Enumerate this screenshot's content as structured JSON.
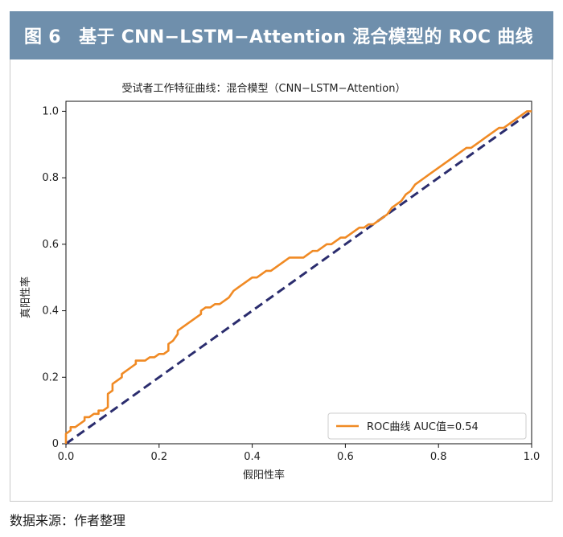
{
  "banner": {
    "title": "图 6　基于 CNN−LSTM−Attention 混合模型的 ROC 曲线"
  },
  "source": {
    "text": "数据来源：作者整理"
  },
  "colors": {
    "banner_bg": "#6f8fac",
    "roc_curve": "#f08a24",
    "diagonal": "#2b2d6e"
  },
  "chart_data": {
    "type": "line",
    "title": "受试者工作特征曲线：混合模型（CNN−LSTM−Attention）",
    "xlabel": "假阳性率",
    "ylabel": "真阳性率",
    "xlim": [
      0,
      1
    ],
    "ylim": [
      0,
      1.03
    ],
    "xticks": [
      "0.0",
      "0.2",
      "0.4",
      "0.6",
      "0.8",
      "1.0"
    ],
    "yticks": [
      "0",
      "0.2",
      "0.4",
      "0.6",
      "0.8",
      "1.0"
    ],
    "grid": false,
    "legend_position": "bottom-right",
    "series": [
      {
        "name": "ROC曲线 AUC值=0.54",
        "style": "solid",
        "x": [
          0,
          0,
          0.01,
          0.01,
          0.02,
          0.03,
          0.04,
          0.04,
          0.05,
          0.06,
          0.07,
          0.07,
          0.08,
          0.09,
          0.09,
          0.1,
          0.1,
          0.11,
          0.12,
          0.12,
          0.13,
          0.14,
          0.15,
          0.15,
          0.16,
          0.17,
          0.18,
          0.19,
          0.2,
          0.21,
          0.22,
          0.22,
          0.23,
          0.24,
          0.24,
          0.25,
          0.26,
          0.27,
          0.28,
          0.29,
          0.29,
          0.3,
          0.31,
          0.32,
          0.33,
          0.34,
          0.35,
          0.36,
          0.37,
          0.38,
          0.39,
          0.4,
          0.41,
          0.42,
          0.43,
          0.44,
          0.45,
          0.46,
          0.47,
          0.48,
          0.49,
          0.5,
          0.51,
          0.52,
          0.53,
          0.54,
          0.55,
          0.56,
          0.57,
          0.58,
          0.59,
          0.6,
          0.61,
          0.62,
          0.63,
          0.64,
          0.65,
          0.66,
          0.67,
          0.68,
          0.69,
          0.7,
          0.71,
          0.72,
          0.73,
          0.74,
          0.75,
          0.76,
          0.77,
          0.78,
          0.79,
          0.8,
          0.81,
          0.82,
          0.83,
          0.84,
          0.85,
          0.86,
          0.87,
          0.88,
          0.89,
          0.9,
          0.91,
          0.92,
          0.93,
          0.94,
          0.95,
          0.96,
          0.97,
          0.98,
          0.99,
          1.0
        ],
        "y": [
          0,
          0.03,
          0.04,
          0.05,
          0.05,
          0.06,
          0.07,
          0.08,
          0.08,
          0.09,
          0.09,
          0.1,
          0.1,
          0.11,
          0.15,
          0.16,
          0.18,
          0.19,
          0.2,
          0.21,
          0.22,
          0.23,
          0.24,
          0.25,
          0.25,
          0.25,
          0.26,
          0.26,
          0.27,
          0.27,
          0.28,
          0.3,
          0.31,
          0.33,
          0.34,
          0.35,
          0.36,
          0.37,
          0.38,
          0.39,
          0.4,
          0.41,
          0.41,
          0.42,
          0.42,
          0.43,
          0.44,
          0.46,
          0.47,
          0.48,
          0.49,
          0.5,
          0.5,
          0.51,
          0.52,
          0.52,
          0.53,
          0.54,
          0.55,
          0.56,
          0.56,
          0.56,
          0.56,
          0.57,
          0.58,
          0.58,
          0.59,
          0.6,
          0.6,
          0.61,
          0.62,
          0.62,
          0.63,
          0.64,
          0.65,
          0.65,
          0.66,
          0.66,
          0.67,
          0.68,
          0.69,
          0.71,
          0.72,
          0.73,
          0.75,
          0.76,
          0.78,
          0.79,
          0.8,
          0.81,
          0.82,
          0.83,
          0.84,
          0.85,
          0.86,
          0.87,
          0.88,
          0.89,
          0.89,
          0.9,
          0.91,
          0.92,
          0.93,
          0.94,
          0.95,
          0.95,
          0.96,
          0.97,
          0.98,
          0.99,
          1.0,
          1.0
        ]
      },
      {
        "name": "",
        "style": "dashed",
        "x": [
          0,
          1
        ],
        "y": [
          0,
          1
        ]
      }
    ]
  }
}
